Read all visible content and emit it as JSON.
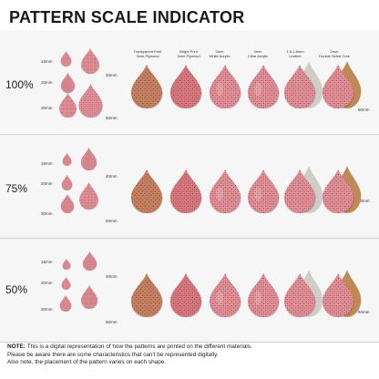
{
  "title": "PATTERN SCALE INDICATOR",
  "columns": [
    {
      "line1": "Transparent Print",
      "line2": "3mm Plywood"
    },
    {
      "line1": "Bright Print",
      "line2": "3mm Plywood"
    },
    {
      "line1": "3mm",
      "line2": "White Acrylic"
    },
    {
      "line1": "3mm",
      "line2": "Clear Acrylic"
    },
    {
      "line1": "1.6-1.8mm",
      "line2": "Leather"
    },
    {
      "line1": "2mm",
      "line2": "Double Sided Cork"
    }
  ],
  "rows": [
    {
      "scale": "100%",
      "sizes": {
        "s15": "15mm",
        "s20": "20mm",
        "s30": "30mm",
        "s40": "40mm",
        "s50": "50mm",
        "s60": "60mm"
      }
    },
    {
      "scale": "75%",
      "sizes": {
        "s15": "15mm",
        "s20": "20mm",
        "s30": "30mm",
        "s40": "40mm",
        "s50": "50mm",
        "s60": "60mm"
      }
    },
    {
      "scale": "50%",
      "sizes": {
        "s15": "15mm",
        "s20": "20mm",
        "s30": "30mm",
        "s40": "40mm",
        "s50": "50mm",
        "s60": "60mm"
      }
    }
  ],
  "note": {
    "label": "NOTE:",
    "line1": "This is a digital representation of how the patterns are printed on the different materials.",
    "line2": "Please be aware there are some characteristics that can't be represented digitally.",
    "line3": "Also note, the placement of the pattern varies on each shape."
  },
  "colors": {
    "pink": "#e8828c",
    "pink_light": "#f2a9b0",
    "pink_dark": "#c85a68",
    "plywood": "#c47a56",
    "plywood_bright": "#d9646c",
    "leather": "#cfcfc8",
    "cork": "#c08a55",
    "dots": "#3a2a2c"
  }
}
